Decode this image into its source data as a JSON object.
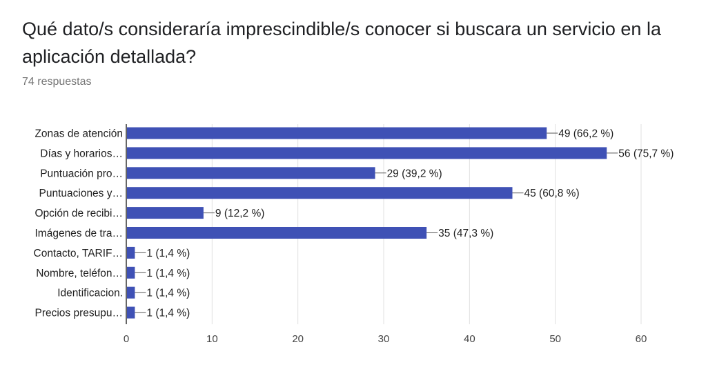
{
  "question": {
    "title": "Qué dato/s consideraría imprescindible/s conocer si buscara un servicio en la aplicación detallada?",
    "responses": "74 respuestas"
  },
  "colors": {
    "bar": "#3f51b5",
    "grid": "#e0e0e0",
    "axis": "#333333",
    "text": "#212121"
  },
  "chart_data": {
    "type": "bar",
    "orientation": "horizontal",
    "categories": [
      "Zonas de atención",
      "Días y horarios…",
      "Puntuación pro…",
      "Puntuaciones y…",
      "Opción de recibi…",
      "Imágenes de tra…",
      "Contacto, TARIF…",
      "Nombre, teléfon…",
      "Identificacion.",
      "Precios presupu…"
    ],
    "values": [
      49,
      56,
      29,
      45,
      9,
      35,
      1,
      1,
      1,
      1
    ],
    "data_labels": [
      "49 (66,2 %)",
      "56 (75,7 %)",
      "29 (39,2 %)",
      "45 (60,8 %)",
      "9 (12,2 %)",
      "35 (47,3 %)",
      "1 (1,4 %)",
      "1 (1,4 %)",
      "1 (1,4 %)",
      "1 (1,4 %)"
    ],
    "xlim": [
      0,
      60
    ],
    "xticks": [
      0,
      10,
      20,
      30,
      40,
      50,
      60
    ],
    "grid": true,
    "legend": "none"
  }
}
